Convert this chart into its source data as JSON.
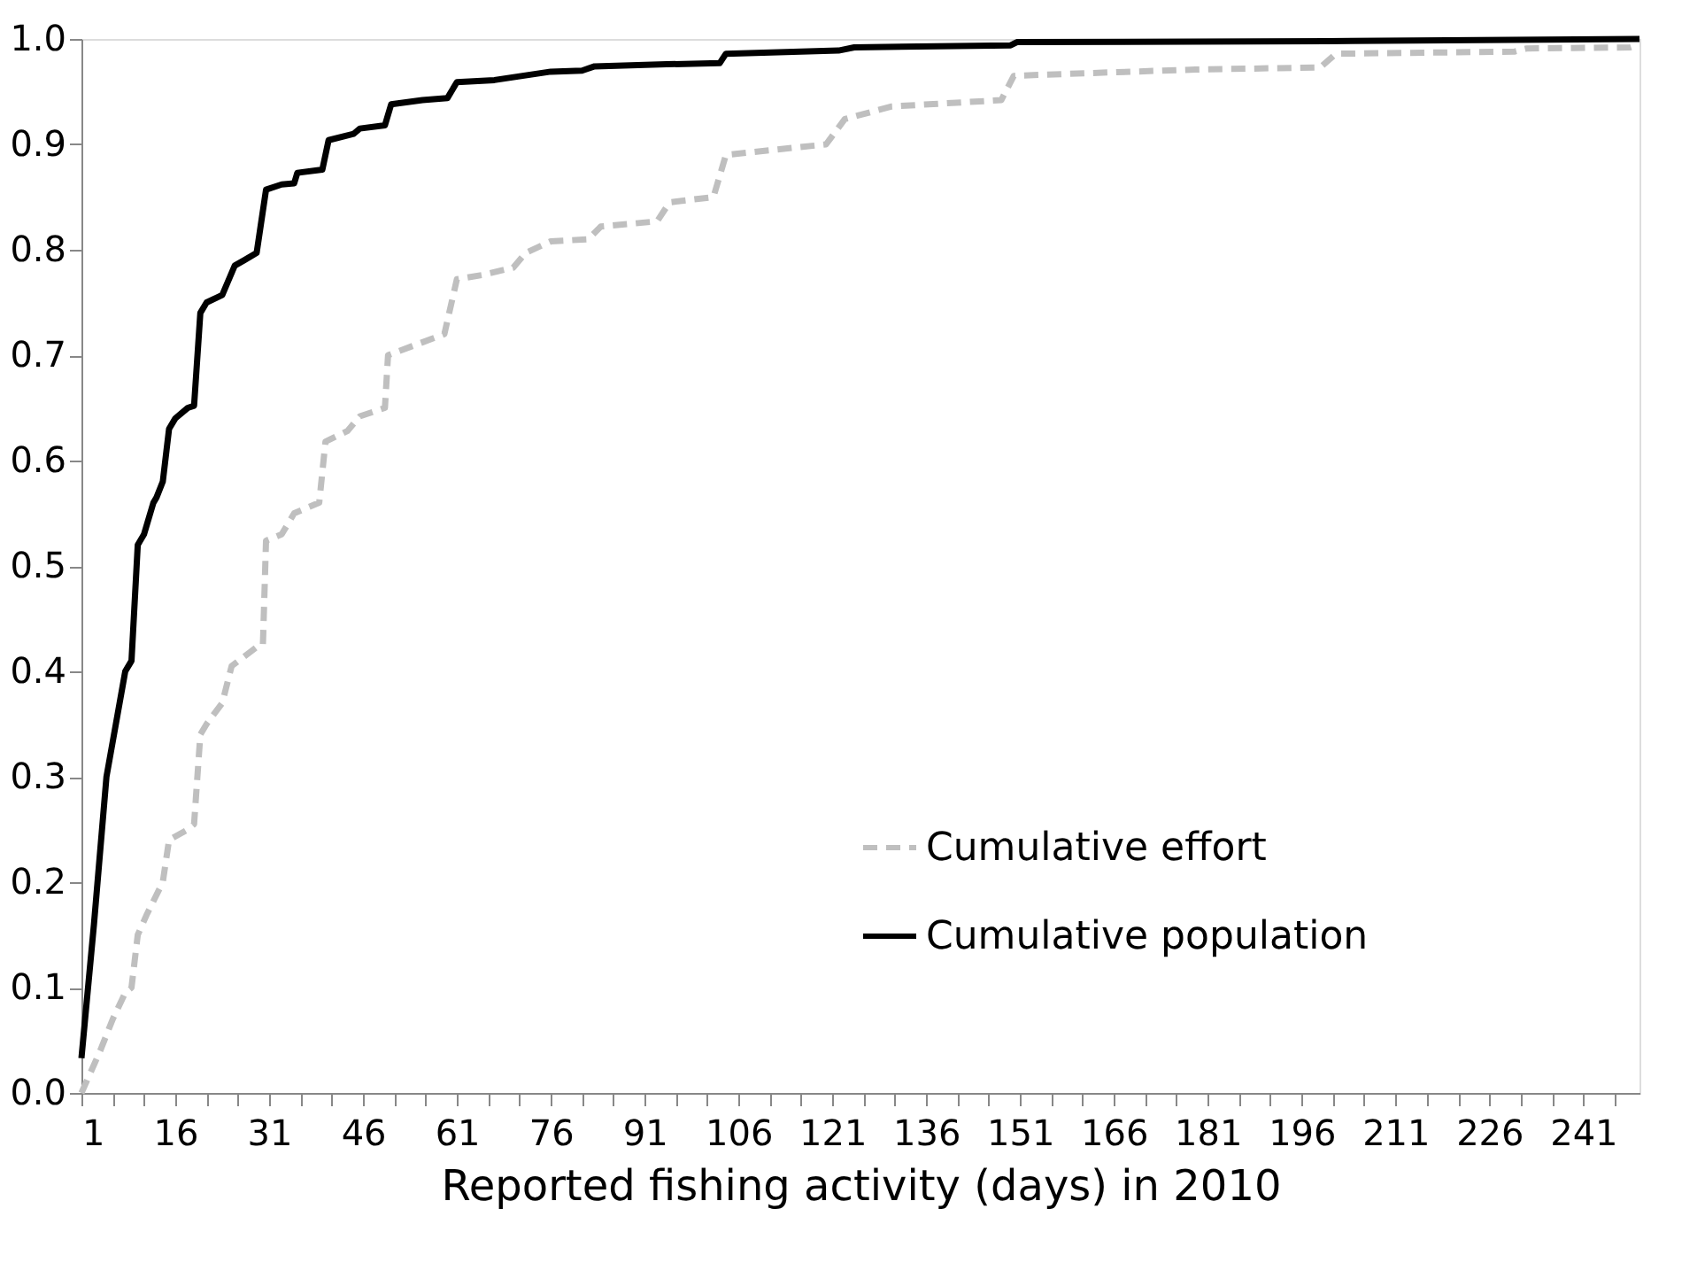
{
  "chart_data": {
    "type": "line",
    "xlabel": "Reported fishing activity (days) in 2010",
    "xlim": [
      1,
      250
    ],
    "ylim": [
      0,
      1
    ],
    "xticks": [
      1,
      {
        "value": 6,
        "label": null
      },
      {
        "value": 11,
        "label": null
      },
      16,
      {
        "value": 21,
        "label": null
      },
      {
        "value": 26,
        "label": null
      },
      31,
      {
        "value": 36,
        "label": null
      },
      {
        "value": 41,
        "label": null
      },
      46,
      {
        "value": 51,
        "label": null
      },
      {
        "value": 56,
        "label": null
      },
      61,
      {
        "value": 66,
        "label": null
      },
      {
        "value": 71,
        "label": null
      },
      76,
      {
        "value": 81,
        "label": null
      },
      {
        "value": 86,
        "label": null
      },
      91,
      {
        "value": 96,
        "label": null
      },
      {
        "value": 101,
        "label": null
      },
      106,
      {
        "value": 111,
        "label": null
      },
      {
        "value": 116,
        "label": null
      },
      121,
      {
        "value": 126,
        "label": null
      },
      {
        "value": 131,
        "label": null
      },
      136,
      {
        "value": 141,
        "label": null
      },
      {
        "value": 146,
        "label": null
      },
      151,
      {
        "value": 156,
        "label": null
      },
      {
        "value": 161,
        "label": null
      },
      166,
      {
        "value": 171,
        "label": null
      },
      {
        "value": 176,
        "label": null
      },
      181,
      {
        "value": 186,
        "label": null
      },
      {
        "value": 191,
        "label": null
      },
      196,
      {
        "value": 201,
        "label": null
      },
      {
        "value": 206,
        "label": null
      },
      211,
      {
        "value": 216,
        "label": null
      },
      {
        "value": 221,
        "label": null
      },
      226,
      {
        "value": 231,
        "label": null
      },
      {
        "value": 236,
        "label": null
      },
      241,
      {
        "value": 246,
        "label": null
      }
    ],
    "yticks": [
      {
        "value": 0,
        "label": "0.0"
      },
      0.1,
      0.2,
      0.3,
      0.4,
      0.5,
      0.6,
      0.7,
      0.8,
      0.9,
      {
        "value": 1,
        "label": "1.0"
      }
    ],
    "grid": false,
    "legend": "right",
    "marker": "none",
    "series": [
      {
        "name": "Cumulative effort",
        "color": "#bfbfbf",
        "line_style": "dashed",
        "x": [
          1,
          4,
          6,
          8,
          9,
          10,
          11.5,
          14,
          15,
          18,
          19,
          20,
          21,
          23.5,
          25,
          29,
          30,
          30.5,
          33,
          35,
          39,
          40,
          43.5,
          45.5,
          49.5,
          50,
          54.5,
          59,
          61,
          65,
          70,
          72,
          76,
          82,
          84,
          93,
          95,
          102,
          104,
          120,
          123,
          130.5,
          148,
          150,
          159,
          179,
          199,
          201.5,
          230,
          232,
          248.5,
          250
        ],
        "values": [
          0,
          0.04,
          0.07,
          0.095,
          0.1,
          0.15,
          0.17,
          0.2,
          0.24,
          0.25,
          0.255,
          0.34,
          0.35,
          0.37,
          0.405,
          0.423,
          0.425,
          0.524,
          0.53,
          0.55,
          0.56,
          0.618,
          0.628,
          0.642,
          0.65,
          0.7,
          0.71,
          0.72,
          0.772,
          0.776,
          0.783,
          0.797,
          0.808,
          0.81,
          0.822,
          0.827,
          0.845,
          0.85,
          0.89,
          0.9,
          0.924,
          0.936,
          0.942,
          0.965,
          0.967,
          0.971,
          0.973,
          0.986,
          0.988,
          0.991,
          0.992,
          0.995
        ]
      },
      {
        "name": "Cumulative population",
        "color": "#000000",
        "line_style": "solid",
        "x": [
          1,
          3,
          5,
          6.5,
          8,
          9,
          10,
          11,
          12.5,
          13,
          14,
          15,
          16,
          18,
          19,
          20,
          21,
          23.5,
          25.5,
          27,
          29,
          30.5,
          33,
          35,
          35.5,
          39.5,
          40.5,
          44.5,
          45.5,
          49.5,
          50.5,
          55.5,
          59.5,
          61,
          67,
          71.5,
          76,
          81,
          83,
          94.5,
          103,
          104,
          122,
          124.5,
          149.5,
          150.5,
          200,
          250
        ],
        "values": [
          0.033,
          0.16,
          0.3,
          0.35,
          0.4,
          0.41,
          0.52,
          0.53,
          0.56,
          0.565,
          0.58,
          0.63,
          0.64,
          0.65,
          0.652,
          0.74,
          0.75,
          0.757,
          0.785,
          0.79,
          0.797,
          0.857,
          0.862,
          0.863,
          0.873,
          0.876,
          0.904,
          0.91,
          0.915,
          0.918,
          0.938,
          0.942,
          0.944,
          0.959,
          0.961,
          0.965,
          0.969,
          0.97,
          0.974,
          0.976,
          0.977,
          0.986,
          0.989,
          0.992,
          0.994,
          0.997,
          0.998,
          1.0
        ]
      }
    ]
  }
}
